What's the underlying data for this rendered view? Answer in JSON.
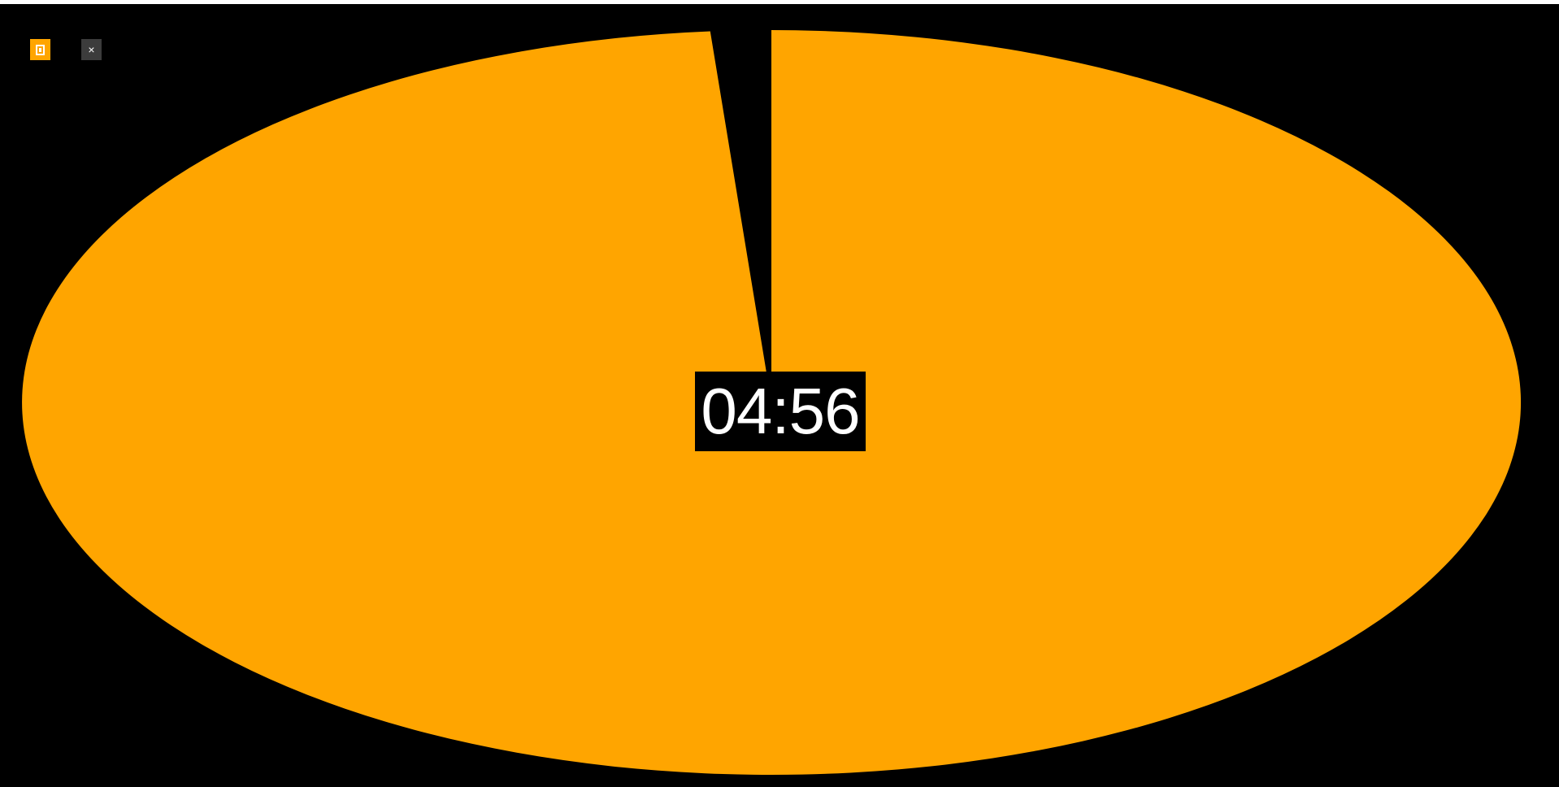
{
  "timer": {
    "time_display": "04:56",
    "remaining_fraction": 0.987,
    "colors": {
      "background": "#000000",
      "remaining": "#FFA500",
      "text": "#FFFFFF",
      "pin_button": "#FFA500",
      "close_button": "#3C3C3C"
    }
  },
  "controls": {
    "pin_icon": "pin-window-icon",
    "close_glyph": "×"
  }
}
